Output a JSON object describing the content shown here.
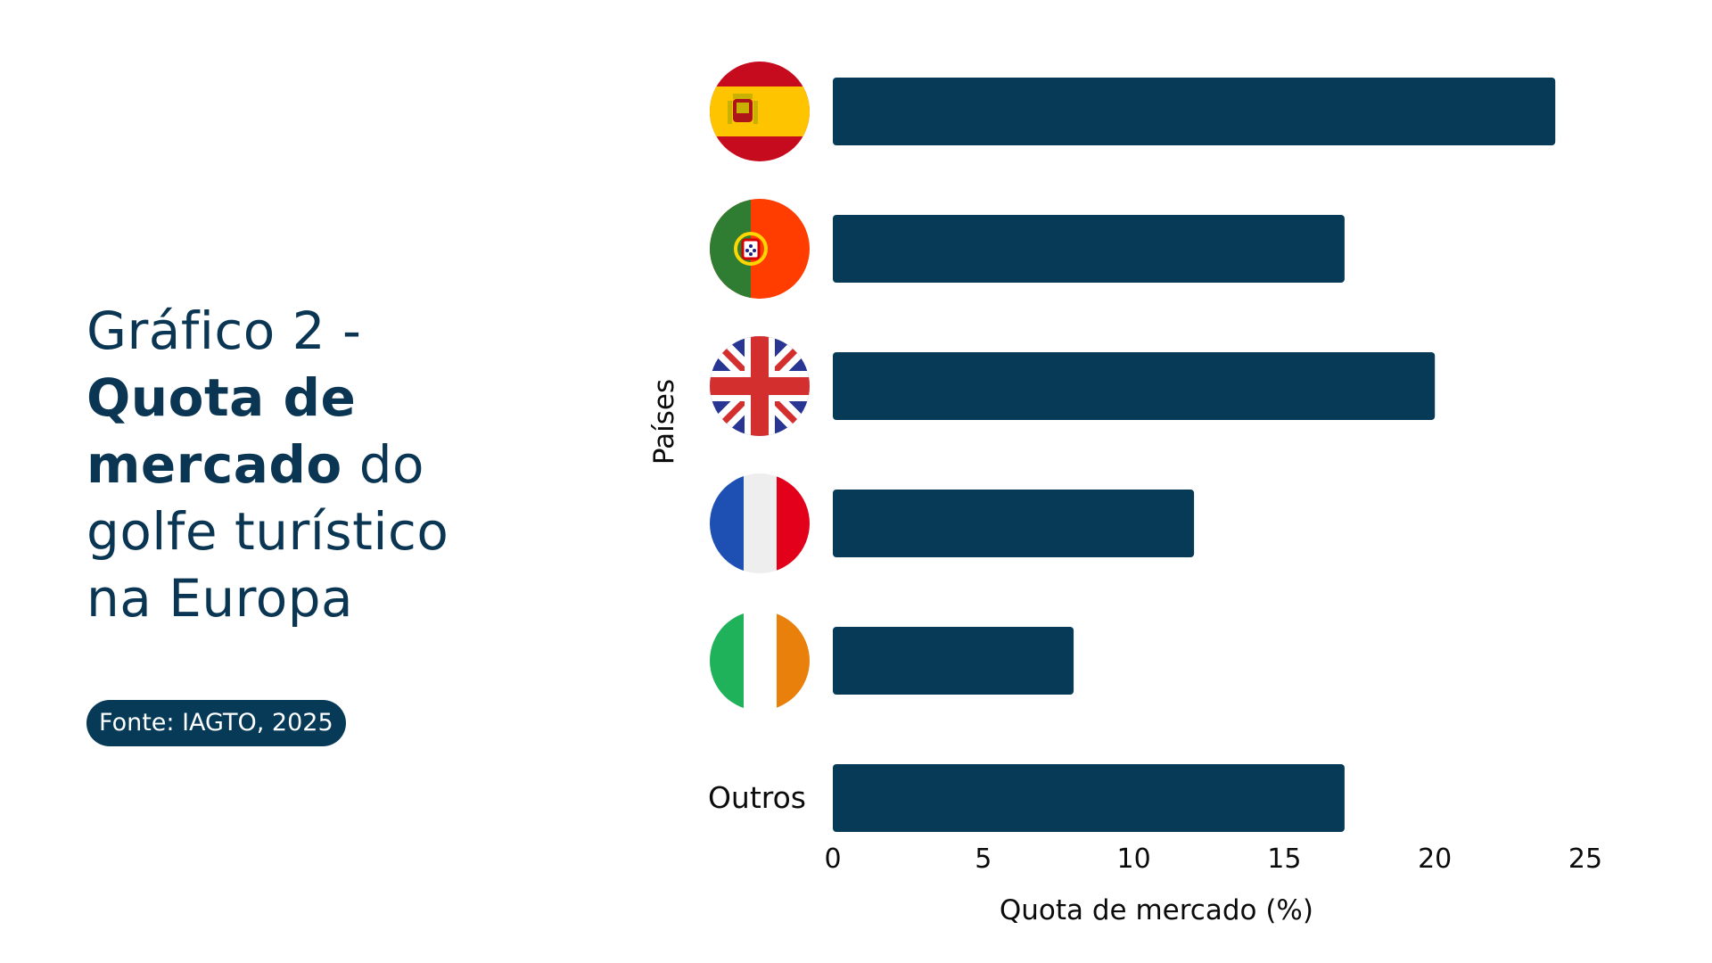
{
  "title": {
    "line1": "Gráfico 2 -",
    "bold1": "Quota de",
    "bold2": "mercado",
    "rest2": " do",
    "line4": "golfe turístico",
    "line5": "na Europa"
  },
  "source": "Fonte: IAGTO, 2025",
  "colors": {
    "bar": "#073a57",
    "title": "#0a3653",
    "badge": "#073a57"
  },
  "chart_data": {
    "type": "bar",
    "orientation": "horizontal",
    "categories": [
      {
        "flag": "spain-flag-icon",
        "label": ""
      },
      {
        "flag": "portugal-flag-icon",
        "label": ""
      },
      {
        "flag": "uk-flag-icon",
        "label": ""
      },
      {
        "flag": "france-flag-icon",
        "label": ""
      },
      {
        "flag": "ireland-flag-icon",
        "label": ""
      },
      {
        "flag": "",
        "label": "Outros"
      }
    ],
    "values": [
      24,
      17,
      20,
      12,
      8,
      17
    ],
    "xlim": [
      0,
      25
    ],
    "xticks": [
      0,
      5,
      10,
      15,
      20,
      25
    ],
    "xlabel": "Quota de mercado (%)",
    "ylabel": "Países",
    "grid": false,
    "legend": "none"
  }
}
